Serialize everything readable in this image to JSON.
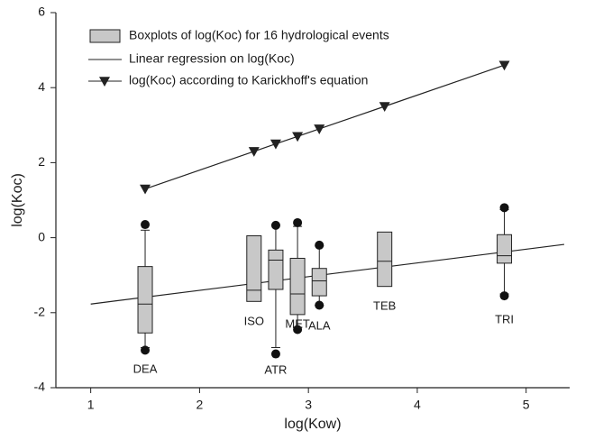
{
  "chart_data": {
    "type": "box",
    "xlabel": "log(Kow)",
    "ylabel": "log(Koc)",
    "xlim": [
      0.68,
      5.4
    ],
    "ylim": [
      -4,
      6
    ],
    "xticks": [
      1,
      2,
      3,
      4,
      5
    ],
    "yticks": [
      -4,
      -2,
      0,
      2,
      4,
      6
    ],
    "box_color": "#c8c8c8",
    "legend": [
      "Boxplots of log(Koc) for 16 hydrological events"
    ],
    "boxes": [
      {
        "label": "DEA",
        "x": 1.5,
        "whisker_low": -2.93,
        "q1": -2.54,
        "median": -1.77,
        "q3": -0.77,
        "whisker_high": 0.2,
        "outliers": [
          0.35,
          -3.0
        ]
      },
      {
        "label": "ISO",
        "x": 2.5,
        "whisker_low": null,
        "q1": -1.7,
        "median": -1.4,
        "q3": 0.05,
        "whisker_high": null,
        "outliers": []
      },
      {
        "label": "ATR",
        "x": 2.7,
        "whisker_low": -2.93,
        "q1": -1.38,
        "median": -0.6,
        "q3": -0.33,
        "whisker_high": 0.33,
        "outliers": [
          0.33,
          -3.1
        ]
      },
      {
        "label": "MET",
        "x": 2.9,
        "whisker_low": -2.4,
        "q1": -2.05,
        "median": -1.5,
        "q3": -0.55,
        "whisker_high": 0.3,
        "outliers": [
          0.4,
          -2.45
        ]
      },
      {
        "label": "ALA",
        "x": 3.1,
        "whisker_low": -1.8,
        "q1": -1.55,
        "median": -1.15,
        "q3": -0.82,
        "whisker_high": -0.22,
        "outliers": [
          -0.2,
          -1.8
        ]
      },
      {
        "label": "TEB",
        "x": 3.7,
        "whisker_low": null,
        "q1": -1.3,
        "median": -0.63,
        "q3": 0.15,
        "whisker_high": null,
        "outliers": []
      },
      {
        "label": "TRI",
        "x": 4.8,
        "whisker_low": -1.5,
        "q1": -0.68,
        "median": -0.48,
        "q3": 0.08,
        "whisker_high": 0.75,
        "outliers": [
          0.8,
          -1.55
        ]
      }
    ],
    "series": [
      {
        "name": "Linear regression on log(Koc)",
        "color": "#222222",
        "marker": null,
        "x": [
          1,
          5.35
        ],
        "values": [
          -1.77,
          -0.18
        ]
      },
      {
        "name": "log(Koc) according to Karickhoff's equation",
        "color": "#222222",
        "marker": "triangle-down",
        "x": [
          1.5,
          2.5,
          2.7,
          2.9,
          3.1,
          3.7,
          4.8
        ],
        "values": [
          1.3,
          2.3,
          2.5,
          2.7,
          2.9,
          3.5,
          4.6
        ]
      }
    ]
  }
}
